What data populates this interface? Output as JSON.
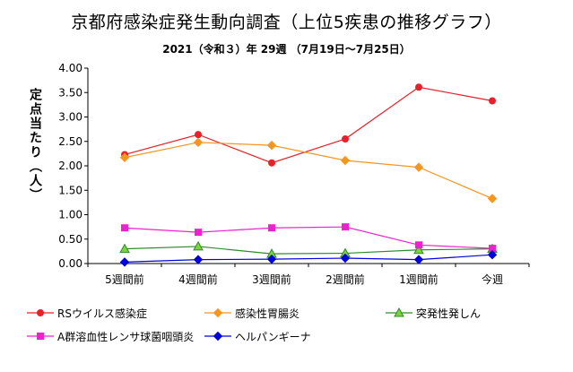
{
  "title": "京都府感染症発生動向調査（上位5疾患の推移グラフ）",
  "subtitle": "2021（令和３）年 29週 （7月19日～7月25日）",
  "chart_data": {
    "type": "line",
    "title": "京都府感染症発生動向調査（上位5疾患の推移グラフ）",
    "subtitle": "2021（令和３）年 29週 （7月19日～7月25日）",
    "ylabel": "定点当たり（人）",
    "xlabel": "",
    "categories": [
      "5週間前",
      "4週間前",
      "3週間前",
      "2週間前",
      "1週間前",
      "今週"
    ],
    "ylim": [
      0,
      4
    ],
    "yticks": [
      "0.00",
      "0.50",
      "1.00",
      "1.50",
      "2.00",
      "2.50",
      "3.00",
      "3.50",
      "4.00"
    ],
    "grid": false,
    "legend_position": "bottom",
    "series": [
      {
        "name": "RSウイルス感染症",
        "color": "#e8202a",
        "marker": "circle",
        "values": [
          2.23,
          2.64,
          2.06,
          2.55,
          3.61,
          3.33
        ]
      },
      {
        "name": "感染性胃腸炎",
        "color": "#f5961e",
        "marker": "diamond",
        "values": [
          2.17,
          2.48,
          2.42,
          2.11,
          1.97,
          1.33
        ]
      },
      {
        "name": "突発性発しん",
        "color": "#2e8b2e",
        "marker": "triangle",
        "fill": "#7fd13b",
        "values": [
          0.3,
          0.35,
          0.2,
          0.21,
          0.28,
          0.3
        ]
      },
      {
        "name": "A群溶血性レンサ球菌咽頭炎",
        "color": "#ee22cc",
        "marker": "square",
        "values": [
          0.73,
          0.64,
          0.73,
          0.75,
          0.38,
          0.31
        ]
      },
      {
        "name": "ヘルパンギーナ",
        "color": "#0000dd",
        "marker": "diamond",
        "values": [
          0.03,
          0.08,
          0.09,
          0.11,
          0.08,
          0.18
        ]
      }
    ]
  }
}
